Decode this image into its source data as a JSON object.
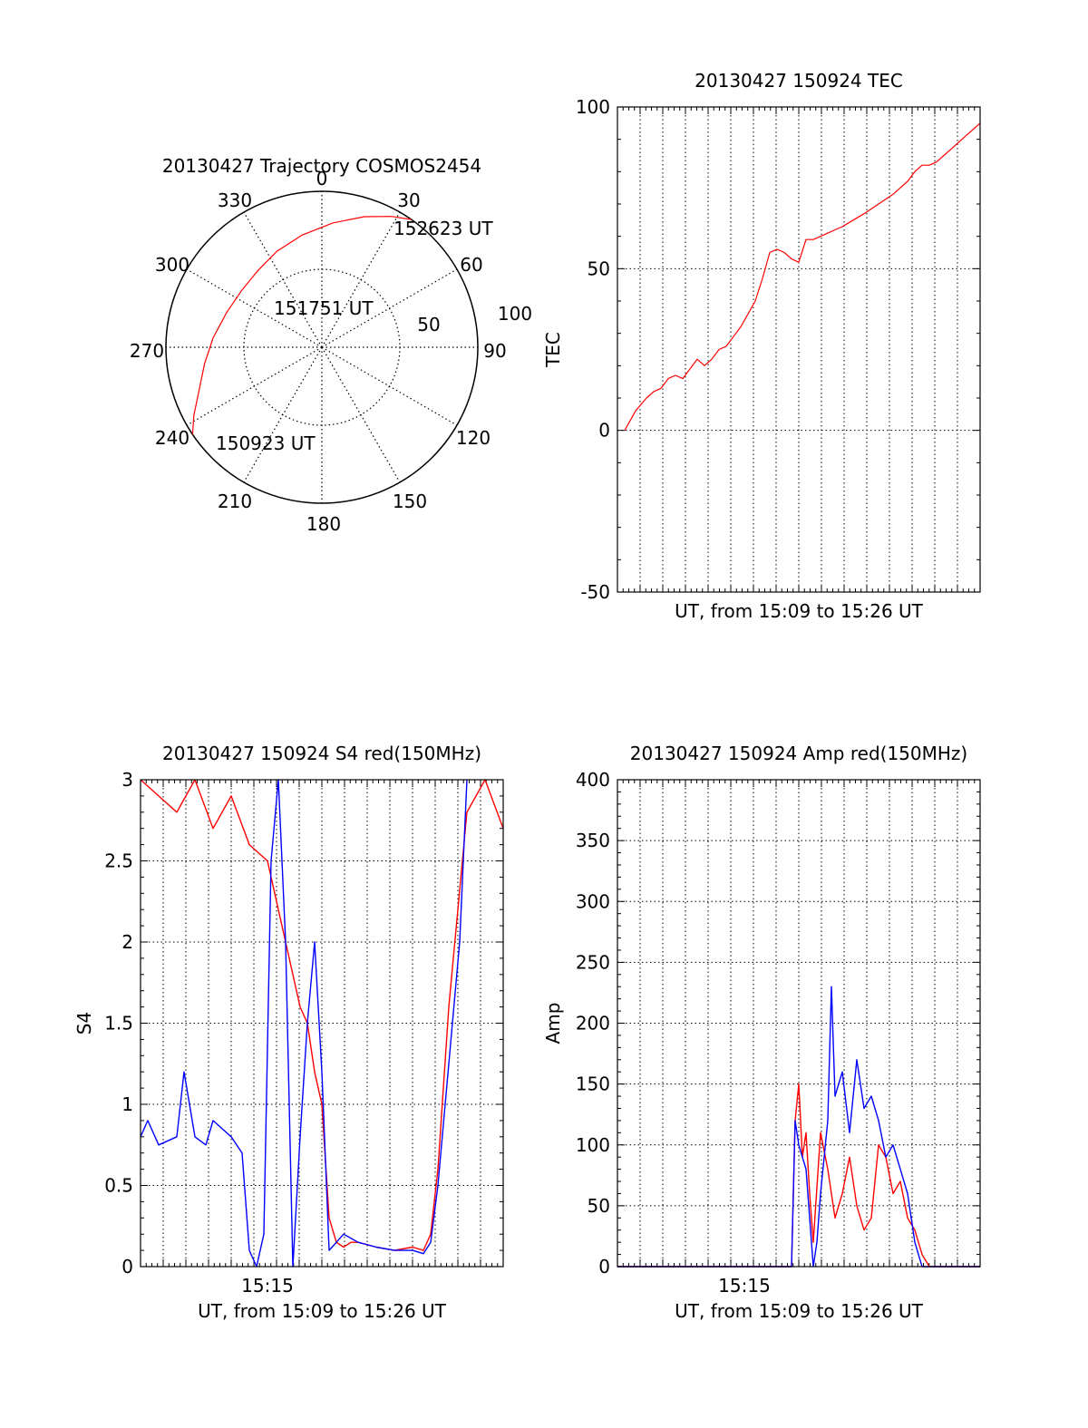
{
  "chart_data": [
    {
      "id": "trajectory",
      "type": "polar",
      "title": "20130427 Trajectory COSMOS2454",
      "azimuth_labels": [
        "0",
        "30",
        "60",
        "90",
        "120",
        "150",
        "180",
        "210",
        "240",
        "270",
        "300",
        "330"
      ],
      "ring_labels": [
        "50",
        "100"
      ],
      "rings_elevation": [
        50,
        100
      ],
      "track": [
        {
          "azimuth": 236,
          "radius": 100
        },
        {
          "azimuth": 242,
          "radius": 93
        },
        {
          "azimuth": 250,
          "radius": 84
        },
        {
          "azimuth": 262,
          "radius": 76
        },
        {
          "azimuth": 275,
          "radius": 70
        },
        {
          "azimuth": 290,
          "radius": 65
        },
        {
          "azimuth": 305,
          "radius": 63
        },
        {
          "azimuth": 320,
          "radius": 64
        },
        {
          "azimuth": 335,
          "radius": 68
        },
        {
          "azimuth": 350,
          "radius": 73
        },
        {
          "azimuth": 5,
          "radius": 80
        },
        {
          "azimuth": 18,
          "radius": 88
        },
        {
          "azimuth": 28,
          "radius": 95
        },
        {
          "azimuth": 35,
          "radius": 100
        }
      ],
      "annotations": [
        {
          "text": "152623 UT",
          "azimuth": 38,
          "radius": 103
        },
        {
          "text": "151751 UT",
          "azimuth": 0,
          "radius": 0
        },
        {
          "text": "150923 UT",
          "azimuth": 230,
          "radius": 102
        }
      ],
      "track_color": "#ff0000"
    },
    {
      "id": "tec",
      "type": "line",
      "title": "20130427 150924 TEC",
      "xlabel": "UT, from 15:09 to 15:26 UT",
      "ylabel": "TEC",
      "xlim": [
        0,
        1
      ],
      "ylim": [
        -50,
        100
      ],
      "yticks": [
        "-50",
        "0",
        "50",
        "100"
      ],
      "series": [
        {
          "color": "#ff0000",
          "x": [
            0.02,
            0.05,
            0.08,
            0.1,
            0.12,
            0.14,
            0.16,
            0.18,
            0.2,
            0.22,
            0.24,
            0.26,
            0.28,
            0.3,
            0.32,
            0.34,
            0.36,
            0.38,
            0.4,
            0.42,
            0.44,
            0.46,
            0.48,
            0.5,
            0.52,
            0.54,
            0.56,
            0.58,
            0.6,
            0.62,
            0.65,
            0.68,
            0.72,
            0.76,
            0.8,
            0.82,
            0.84,
            0.86,
            0.88,
            0.9,
            0.92,
            0.94,
            0.96,
            0.98,
            1.0
          ],
          "y": [
            0,
            6,
            10,
            12,
            13,
            16,
            17,
            16,
            19,
            22,
            20,
            22,
            25,
            26,
            29,
            32,
            36,
            40,
            47,
            55,
            56,
            55,
            53,
            52,
            59,
            59,
            60,
            61,
            62,
            63,
            65,
            67,
            70,
            73,
            77,
            80,
            82,
            82,
            83,
            85,
            87,
            89,
            91,
            93,
            95
          ]
        }
      ]
    },
    {
      "id": "s4",
      "type": "line",
      "title": "20130427 150924 S4 red(150MHz)",
      "xlabel": "UT, from 15:09 to 15:26 UT",
      "ylabel": "S4",
      "xlim": [
        0,
        1
      ],
      "ylim": [
        0,
        3
      ],
      "yticks": [
        "0",
        "0.5",
        "1",
        "1.5",
        "2",
        "2.5",
        "3"
      ],
      "xticks": [
        {
          "x": 0.35,
          "label": "15:15"
        }
      ],
      "series": [
        {
          "color": "#ff0000",
          "x": [
            0.0,
            0.05,
            0.1,
            0.15,
            0.2,
            0.25,
            0.3,
            0.35,
            0.38,
            0.4,
            0.42,
            0.44,
            0.46,
            0.48,
            0.5,
            0.52,
            0.54,
            0.56,
            0.58,
            0.6,
            0.65,
            0.7,
            0.75,
            0.78,
            0.8,
            0.82,
            0.85,
            0.9,
            0.95,
            1.0
          ],
          "y": [
            3.0,
            2.9,
            2.8,
            3.0,
            2.7,
            2.9,
            2.6,
            2.5,
            2.2,
            2.0,
            1.8,
            1.6,
            1.5,
            1.2,
            1.0,
            0.3,
            0.15,
            0.12,
            0.15,
            0.15,
            0.12,
            0.1,
            0.12,
            0.1,
            0.2,
            0.6,
            1.6,
            2.8,
            3.0,
            2.7
          ]
        },
        {
          "color": "#0000ff",
          "x": [
            0.0,
            0.02,
            0.05,
            0.1,
            0.12,
            0.15,
            0.18,
            0.2,
            0.25,
            0.28,
            0.3,
            0.32,
            0.34,
            0.36,
            0.38,
            0.4,
            0.42,
            0.44,
            0.46,
            0.48,
            0.5,
            0.52,
            0.54,
            0.56,
            0.6,
            0.65,
            0.7,
            0.75,
            0.78,
            0.8,
            0.82,
            0.84,
            0.86,
            0.88,
            0.9
          ],
          "y": [
            0.8,
            0.9,
            0.75,
            0.8,
            1.2,
            0.8,
            0.75,
            0.9,
            0.8,
            0.7,
            0.1,
            0.0,
            0.2,
            2.5,
            3.0,
            2.0,
            0.0,
            0.8,
            1.5,
            2.0,
            1.2,
            0.1,
            0.15,
            0.2,
            0.15,
            0.12,
            0.1,
            0.1,
            0.08,
            0.15,
            0.5,
            1.0,
            1.5,
            2.0,
            3.0
          ]
        }
      ]
    },
    {
      "id": "amp",
      "type": "line",
      "title": "20130427 150924 Amp red(150MHz)",
      "xlabel": "UT, from 15:09 to 15:26 UT",
      "ylabel": "Amp",
      "xlim": [
        0,
        1
      ],
      "ylim": [
        0,
        400
      ],
      "yticks": [
        "0",
        "50",
        "100",
        "150",
        "200",
        "250",
        "300",
        "350",
        "400"
      ],
      "xticks": [
        {
          "x": 0.35,
          "label": "15:15"
        }
      ],
      "series": [
        {
          "color": "#ff0000",
          "x": [
            0.0,
            0.3,
            0.48,
            0.49,
            0.5,
            0.51,
            0.52,
            0.53,
            0.54,
            0.56,
            0.58,
            0.6,
            0.62,
            0.64,
            0.66,
            0.68,
            0.7,
            0.72,
            0.74,
            0.76,
            0.78,
            0.8,
            0.82,
            0.84,
            0.86,
            1.0
          ],
          "y": [
            0,
            0,
            0,
            120,
            150,
            90,
            110,
            60,
            20,
            110,
            80,
            40,
            60,
            90,
            50,
            30,
            40,
            100,
            90,
            60,
            70,
            40,
            30,
            10,
            0,
            0
          ]
        },
        {
          "color": "#0000ff",
          "x": [
            0.0,
            0.3,
            0.48,
            0.49,
            0.5,
            0.52,
            0.54,
            0.55,
            0.56,
            0.58,
            0.59,
            0.6,
            0.62,
            0.64,
            0.66,
            0.68,
            0.7,
            0.72,
            0.74,
            0.76,
            0.78,
            0.8,
            0.82,
            0.84,
            1.0
          ],
          "y": [
            0,
            0,
            0,
            120,
            100,
            80,
            0,
            20,
            60,
            120,
            230,
            140,
            160,
            110,
            170,
            130,
            140,
            120,
            90,
            100,
            80,
            60,
            20,
            0,
            0
          ]
        }
      ]
    }
  ]
}
